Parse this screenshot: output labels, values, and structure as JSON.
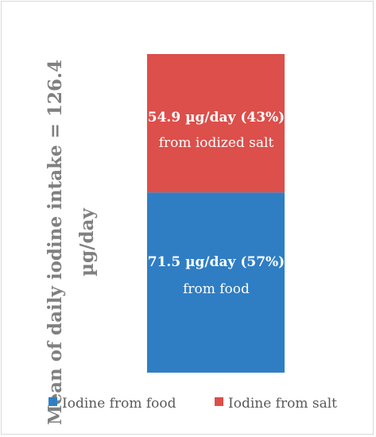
{
  "chart_data": {
    "type": "bar",
    "stacked": true,
    "categories": [
      ""
    ],
    "series": [
      {
        "name": "Iodine from food",
        "values": [
          71.5
        ],
        "color": "#2f7ec4",
        "label_value": "71.5 µg/day (57%)",
        "label_desc": "from food"
      },
      {
        "name": "Iodine from salt",
        "values": [
          54.9
        ],
        "color": "#dc4f4b",
        "label_value": "54.9 µg/day (43%)",
        "label_desc": "from iodized salt"
      }
    ],
    "ylabel_lines": [
      "Mean of daily iodine intake = 126.4",
      "µg/day"
    ],
    "total": 126.4,
    "ylim": [
      0,
      126.4
    ],
    "legend_position": "bottom",
    "grid": false
  }
}
